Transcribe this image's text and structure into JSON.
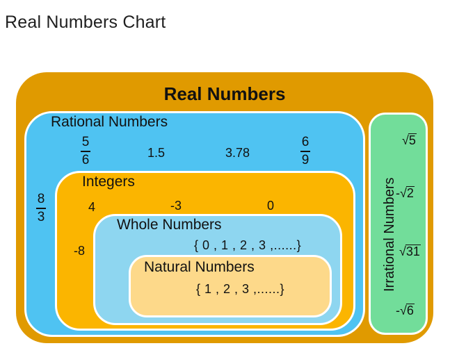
{
  "title": "Real Numbers Chart",
  "real": {
    "label": "Real Numbers"
  },
  "rational": {
    "label": "Rational Numbers",
    "fractions": [
      {
        "num": "5",
        "den": "6"
      },
      {
        "num": "6",
        "den": "9"
      },
      {
        "num": "8",
        "den": "3"
      }
    ],
    "decimals": [
      "1.5",
      "3.78"
    ]
  },
  "integers": {
    "label": "Integers",
    "values": [
      "4",
      "-3",
      "0",
      "-8"
    ]
  },
  "whole": {
    "label": "Whole Numbers",
    "set": "{ 0 , 1 , 2 , 3 ,......}"
  },
  "natural": {
    "label": "Natural Numbers",
    "set": "{ 1 , 2 , 3 ,......}"
  },
  "irrational": {
    "label": "Irrational Numbers",
    "roots": [
      {
        "sign": "",
        "radicand": "5"
      },
      {
        "sign": "-",
        "radicand": "2"
      },
      {
        "sign": "",
        "radicand": "31"
      },
      {
        "sign": "-",
        "radicand": "6"
      }
    ]
  },
  "colors": {
    "real": "#e09a00",
    "rational": "#4fc3f2",
    "integers": "#fbb500",
    "whole": "#8ed6f0",
    "natural": "#fdd98a",
    "irrational": "#72dd9a"
  }
}
